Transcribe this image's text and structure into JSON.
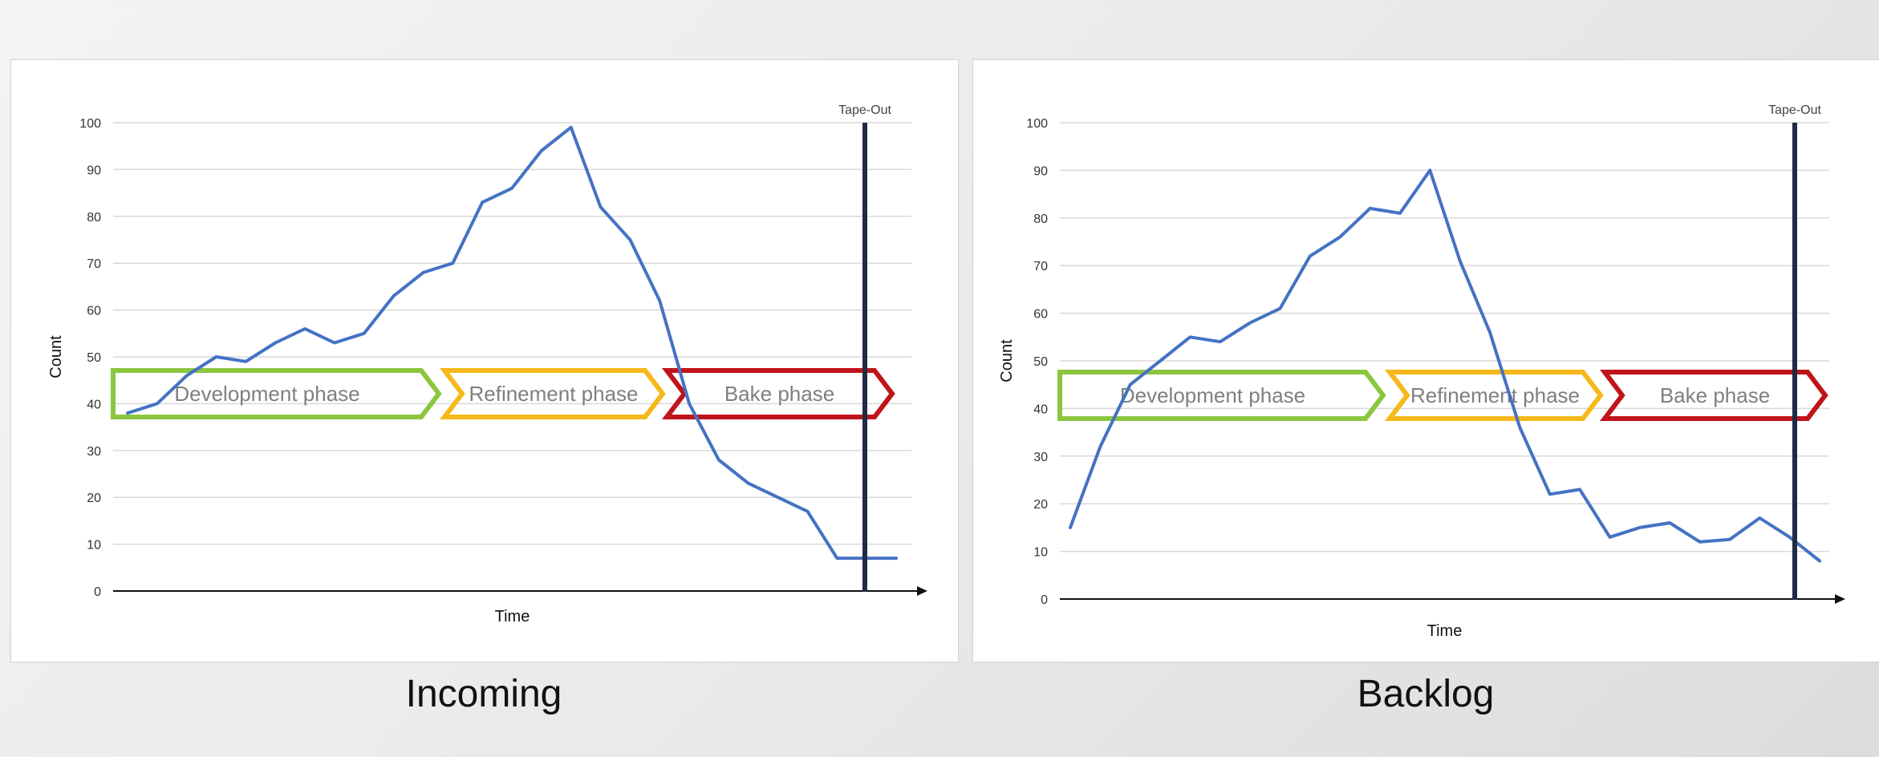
{
  "captions": {
    "incoming": "Incoming",
    "backlog": "Backlog"
  },
  "phases": [
    {
      "label": "Development phase",
      "color": "#8cc63f"
    },
    {
      "label": "Refinement phase",
      "color": "#f6b81a"
    },
    {
      "label": "Bake phase",
      "color": "#c0141b"
    }
  ],
  "colors": {
    "line": "#4472c4",
    "tapeout": "#1f2a44",
    "grid": "#d9d9d9"
  },
  "chart_data": [
    {
      "type": "line",
      "title": "",
      "xlabel": "Time",
      "ylabel": "Count",
      "ylim": [
        0,
        100
      ],
      "yticks": [
        0,
        10,
        20,
        30,
        40,
        50,
        60,
        70,
        80,
        90,
        100
      ],
      "grid": true,
      "marker_label": "Tape-Out",
      "x": [
        0,
        1,
        2,
        3,
        4,
        5,
        6,
        7,
        8,
        9,
        10,
        11,
        12,
        13,
        14,
        15,
        16,
        17,
        18,
        19,
        20,
        21,
        22,
        23,
        24,
        25,
        26
      ],
      "series": [
        {
          "values": [
            38,
            40,
            46,
            50,
            49,
            53,
            56,
            53,
            55,
            63,
            68,
            70,
            83,
            86,
            94,
            99,
            82,
            75,
            62,
            40,
            28,
            23,
            20,
            17,
            7,
            7,
            7
          ]
        }
      ]
    },
    {
      "type": "line",
      "title": "",
      "xlabel": "Time",
      "ylabel": "Count",
      "ylim": [
        0,
        100
      ],
      "yticks": [
        0,
        10,
        20,
        30,
        40,
        50,
        60,
        70,
        80,
        90,
        100
      ],
      "grid": true,
      "marker_label": "Tape-Out",
      "x": [
        0,
        1,
        2,
        3,
        4,
        5,
        6,
        7,
        8,
        9,
        10,
        11,
        12,
        13,
        14,
        15,
        16,
        17,
        18,
        19,
        20,
        21,
        22,
        23,
        24,
        25
      ],
      "series": [
        {
          "values": [
            15,
            32,
            45,
            50,
            55,
            54,
            58,
            61,
            72,
            76,
            82,
            81,
            90,
            71,
            56,
            36,
            22,
            23,
            13,
            15,
            16,
            12,
            12.5,
            17,
            13,
            8
          ]
        }
      ]
    }
  ]
}
